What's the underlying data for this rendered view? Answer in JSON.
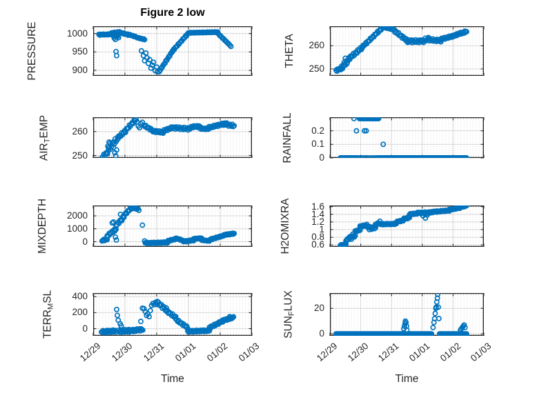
{
  "figure": {
    "title": "Figure 2 low",
    "xlabel": "Time",
    "xlim_days": [
      0,
      5
    ],
    "xticks_days": [
      0,
      1,
      2,
      3,
      4,
      5
    ],
    "xticklabels": [
      "12/29",
      "12/30",
      "12/31",
      "01/01",
      "01/02",
      "01/03"
    ]
  },
  "colors": {
    "marker": "#0072BD",
    "axis": "#262626",
    "grid": "#d7d7d7",
    "minor_dot": "#a0a0a0",
    "title": "#000000"
  },
  "chart_data": [
    {
      "type": "scatter",
      "name": "pressure",
      "ylabel_parts": [
        {
          "t": "PRESSURE"
        }
      ],
      "ylim": [
        885,
        1020
      ],
      "yticks": [
        {
          "v": 1000,
          "label": "1000"
        },
        {
          "v": 950,
          "label": "950"
        },
        {
          "v": 900,
          "label": "900"
        }
      ],
      "bands": [
        [
          0.18,
          0.62,
          16,
          997,
          998,
          1.2
        ],
        [
          0.55,
          0.82,
          10,
          1001,
          1004,
          1.2
        ],
        [
          0.62,
          0.8,
          7,
          995,
          990,
          1.5
        ],
        [
          0.82,
          1.1,
          10,
          1003,
          997,
          1.5
        ],
        [
          1.1,
          1.38,
          10,
          998,
          990,
          1.0
        ],
        [
          1.38,
          1.62,
          9,
          989,
          984,
          0.8
        ],
        [
          2.08,
          2.5,
          15,
          897,
          952,
          1.5
        ],
        [
          2.5,
          3.0,
          18,
          953,
          1001,
          1.5
        ],
        [
          3.0,
          3.92,
          32,
          1002,
          1004,
          0.8
        ],
        [
          3.92,
          4.3,
          13,
          1001,
          969,
          0.8
        ]
      ],
      "points": [
        [
          0.72,
          951
        ],
        [
          0.74,
          940
        ],
        [
          0.66,
          988
        ],
        [
          0.7,
          984
        ],
        [
          1.52,
          953
        ],
        [
          1.58,
          940
        ],
        [
          1.62,
          926
        ],
        [
          1.66,
          947
        ],
        [
          1.7,
          934
        ],
        [
          1.74,
          919
        ],
        [
          1.78,
          929
        ],
        [
          1.82,
          906
        ],
        [
          1.86,
          914
        ],
        [
          1.9,
          922
        ],
        [
          1.95,
          899
        ],
        [
          2.0,
          909
        ],
        [
          2.02,
          896
        ],
        [
          4.34,
          965
        ]
      ]
    },
    {
      "type": "scatter",
      "name": "theta",
      "ylabel_parts": [
        {
          "t": "THETA"
        }
      ],
      "ylim": [
        247,
        268.5
      ],
      "yticks": [
        {
          "v": 260,
          "label": "260"
        },
        {
          "v": 250,
          "label": "250"
        }
      ],
      "bands": [
        [
          0.2,
          0.38,
          8,
          249.3,
          250.2,
          0.4
        ],
        [
          0.38,
          0.62,
          9,
          250.5,
          254,
          0.8
        ],
        [
          0.62,
          1.05,
          16,
          254.5,
          259.3,
          0.6
        ],
        [
          1.05,
          1.72,
          24,
          259.5,
          268,
          0.4
        ],
        [
          1.72,
          2.05,
          12,
          268.2,
          267.3,
          0.3
        ],
        [
          2.05,
          2.5,
          16,
          267,
          262.3,
          0.5
        ],
        [
          2.5,
          3.1,
          22,
          262,
          262,
          0.6
        ],
        [
          3.1,
          3.6,
          18,
          262.8,
          262.2,
          0.5
        ],
        [
          3.6,
          4.1,
          18,
          262.8,
          264.6,
          0.4
        ],
        [
          4.1,
          4.44,
          13,
          264.8,
          266.2,
          0.4
        ]
      ],
      "points": [
        [
          0.46,
          252.8
        ],
        [
          0.5,
          254.6
        ],
        [
          0.55,
          252.2
        ],
        [
          3.2,
          263.6
        ]
      ]
    },
    {
      "type": "scatter",
      "name": "air-temp",
      "ylabel_parts": [
        {
          "t": "AIR"
        },
        {
          "t": "T",
          "sub": true
        },
        {
          "t": "EMP"
        }
      ],
      "ylim": [
        249,
        266
      ],
      "yticks": [
        {
          "v": 260,
          "label": "260"
        },
        {
          "v": 250,
          "label": "250"
        }
      ],
      "bands": [
        [
          0.28,
          0.48,
          8,
          249.4,
          251.5,
          0.6
        ],
        [
          0.48,
          0.78,
          11,
          253.5,
          257,
          1.0
        ],
        [
          0.78,
          1.02,
          9,
          257.5,
          260.3,
          0.6
        ],
        [
          1.02,
          1.35,
          12,
          260.5,
          265.2,
          0.5
        ],
        [
          1.6,
          1.88,
          10,
          262.6,
          260.4,
          0.4
        ],
        [
          1.88,
          2.2,
          12,
          260.2,
          259.7,
          0.4
        ],
        [
          2.2,
          2.52,
          12,
          260.2,
          261.8,
          0.4
        ],
        [
          2.52,
          3.05,
          18,
          261.6,
          261.1,
          0.5
        ],
        [
          3.05,
          3.38,
          12,
          261.9,
          262.2,
          0.4
        ],
        [
          3.38,
          3.62,
          9,
          261.3,
          261.1,
          0.3
        ],
        [
          3.62,
          4.08,
          16,
          261.6,
          263.1,
          0.4
        ],
        [
          4.08,
          4.44,
          13,
          263.2,
          262.4,
          0.5
        ]
      ],
      "points": [
        [
          0.42,
          251.2
        ],
        [
          0.46,
          253.9
        ],
        [
          0.5,
          255.6
        ],
        [
          0.54,
          252.6
        ],
        [
          0.64,
          253.4
        ],
        [
          0.68,
          251.2
        ],
        [
          0.71,
          249.9
        ],
        [
          0.74,
          252.3
        ],
        [
          1.38,
          264.1
        ],
        [
          1.42,
          262.3
        ],
        [
          1.46,
          261.6
        ],
        [
          1.5,
          263.3
        ],
        [
          1.55,
          263.9
        ],
        [
          4.2,
          263.6
        ]
      ]
    },
    {
      "type": "scatter",
      "name": "rainfall",
      "ylabel_parts": [
        {
          "t": "RAINFALL"
        }
      ],
      "ylim": [
        0,
        0.3
      ],
      "yticks": [
        {
          "v": 0.2,
          "label": "0.2"
        },
        {
          "v": 0.1,
          "label": "0.1"
        },
        {
          "v": 0,
          "label": "0"
        }
      ],
      "bands": [
        [
          0.34,
          0.8,
          22,
          0,
          0,
          0
        ],
        [
          0.96,
          1.58,
          20,
          0.29,
          0.29,
          0
        ],
        [
          1.56,
          4.44,
          120,
          0,
          0,
          0
        ]
      ],
      "points": [
        [
          0.78,
          0.29
        ],
        [
          0.86,
          0.2
        ],
        [
          1.12,
          0.2
        ],
        [
          1.18,
          0.2
        ],
        [
          1.73,
          0.1
        ],
        [
          0.84,
          0
        ],
        [
          0.9,
          0
        ],
        [
          0.96,
          0
        ],
        [
          1.02,
          0
        ],
        [
          1.08,
          0
        ],
        [
          1.14,
          0
        ],
        [
          1.2,
          0
        ],
        [
          1.28,
          0
        ],
        [
          1.36,
          0
        ],
        [
          1.44,
          0
        ],
        [
          1.5,
          0
        ]
      ]
    },
    {
      "type": "scatter",
      "name": "mixdepth",
      "ylabel_parts": [
        {
          "t": "MIXDEPTH"
        }
      ],
      "ylim": [
        -400,
        2800
      ],
      "yticks": [
        {
          "v": 2000,
          "label": "2000"
        },
        {
          "v": 1000,
          "label": "1000"
        },
        {
          "v": 0,
          "label": "0"
        }
      ],
      "bands": [
        [
          0.28,
          0.44,
          7,
          90,
          200,
          60
        ],
        [
          0.44,
          0.72,
          10,
          430,
          1000,
          80
        ],
        [
          0.72,
          0.97,
          9,
          1250,
          1950,
          90
        ],
        [
          0.97,
          1.2,
          9,
          2050,
          2600,
          70
        ],
        [
          1.2,
          1.44,
          9,
          2700,
          2480,
          60
        ],
        [
          1.64,
          2.36,
          30,
          -110,
          -60,
          40
        ],
        [
          2.36,
          2.62,
          10,
          60,
          230,
          40
        ],
        [
          2.62,
          2.82,
          8,
          240,
          110,
          30
        ],
        [
          2.82,
          3.16,
          13,
          10,
          110,
          40
        ],
        [
          3.16,
          3.42,
          10,
          210,
          280,
          30
        ],
        [
          3.42,
          3.66,
          9,
          120,
          60,
          30
        ],
        [
          3.66,
          4.12,
          16,
          150,
          480,
          40
        ],
        [
          4.12,
          4.44,
          14,
          520,
          630,
          40
        ]
      ],
      "points": [
        [
          0.55,
          700
        ],
        [
          0.6,
          1450
        ],
        [
          0.64,
          1520
        ],
        [
          0.68,
          820
        ],
        [
          0.7,
          360
        ],
        [
          0.73,
          130
        ],
        [
          0.86,
          2120
        ],
        [
          0.9,
          1620
        ],
        [
          1.25,
          2760
        ],
        [
          1.3,
          2740
        ],
        [
          1.55,
          1280
        ],
        [
          1.62,
          60
        ]
      ]
    },
    {
      "type": "scatter",
      "name": "h2omixra",
      "ylabel_parts": [
        {
          "t": "H2OMIXRA"
        }
      ],
      "ylim": [
        0.55,
        1.63
      ],
      "yticks": [
        {
          "v": 1.6,
          "label": "1.6"
        },
        {
          "v": 1.4,
          "label": "1.4"
        },
        {
          "v": 1.2,
          "label": "1.2"
        },
        {
          "v": 1,
          "label": "1"
        },
        {
          "v": 0.8,
          "label": "0.8"
        },
        {
          "v": 0.6,
          "label": "0.6"
        }
      ],
      "bands": [
        [
          0.34,
          0.52,
          8,
          0.6,
          0.61,
          0.01
        ],
        [
          0.52,
          0.64,
          6,
          0.72,
          0.78,
          0.02
        ],
        [
          0.64,
          0.82,
          8,
          0.8,
          0.83,
          0.02
        ],
        [
          0.82,
          0.98,
          7,
          0.95,
          1.0,
          0.02
        ],
        [
          0.98,
          1.2,
          9,
          1.08,
          1.12,
          0.015
        ],
        [
          1.2,
          1.48,
          11,
          1.07,
          1.04,
          0.02
        ],
        [
          1.48,
          1.62,
          6,
          1.12,
          1.2,
          0.02
        ],
        [
          1.62,
          2.16,
          20,
          1.14,
          1.15,
          0.015
        ],
        [
          2.16,
          2.38,
          9,
          1.2,
          1.24,
          0.015
        ],
        [
          2.38,
          2.58,
          8,
          1.28,
          1.31,
          0.015
        ],
        [
          2.58,
          2.82,
          9,
          1.4,
          1.42,
          0.015
        ],
        [
          2.82,
          3.32,
          18,
          1.43,
          1.45,
          0.02
        ],
        [
          3.32,
          3.88,
          20,
          1.46,
          1.5,
          0.015
        ],
        [
          3.88,
          4.22,
          13,
          1.52,
          1.57,
          0.015
        ],
        [
          4.22,
          4.44,
          9,
          1.58,
          1.62,
          0.01
        ]
      ],
      "points": [
        [
          0.7,
          0.75
        ],
        [
          0.74,
          0.88
        ],
        [
          1.28,
          1.0
        ],
        [
          1.36,
          1.01
        ],
        [
          3.02,
          1.36
        ],
        [
          3.1,
          1.3
        ],
        [
          3.16,
          1.38
        ]
      ]
    },
    {
      "type": "scatter",
      "name": "terr-msl",
      "ylabel_parts": [
        {
          "t": "TERR"
        },
        {
          "t": "M",
          "sub": true
        },
        {
          "t": "SL"
        }
      ],
      "ylim": [
        -90,
        445
      ],
      "yticks": [
        {
          "v": 400,
          "label": "400"
        },
        {
          "v": 200,
          "label": "200"
        },
        {
          "v": 0,
          "label": "0"
        }
      ],
      "bands": [
        [
          0.26,
          0.72,
          20,
          -40,
          -30,
          14
        ],
        [
          0.8,
          1.12,
          14,
          -35,
          -25,
          16
        ],
        [
          1.12,
          1.56,
          18,
          -30,
          -10,
          14
        ],
        [
          2.02,
          2.3,
          10,
          320,
          240,
          20
        ],
        [
          2.3,
          2.6,
          10,
          225,
          140,
          15
        ],
        [
          2.6,
          2.98,
          13,
          115,
          10,
          12
        ],
        [
          2.98,
          3.66,
          26,
          -35,
          -25,
          10
        ],
        [
          3.66,
          4.08,
          15,
          10,
          95,
          12
        ],
        [
          4.08,
          4.42,
          13,
          100,
          140,
          10
        ]
      ],
      "points": [
        [
          0.74,
          240
        ],
        [
          0.76,
          165
        ],
        [
          0.79,
          105
        ],
        [
          0.85,
          60
        ],
        [
          0.88,
          35
        ],
        [
          1.5,
          90
        ],
        [
          1.55,
          255
        ],
        [
          1.6,
          250
        ],
        [
          1.64,
          215
        ],
        [
          1.68,
          165
        ],
        [
          1.72,
          185
        ],
        [
          1.76,
          150
        ],
        [
          1.8,
          225
        ],
        [
          1.84,
          290
        ],
        [
          1.88,
          315
        ],
        [
          1.93,
          300
        ],
        [
          1.97,
          330
        ],
        [
          2.02,
          340
        ],
        [
          4.3,
          150
        ],
        [
          4.35,
          130
        ]
      ]
    },
    {
      "type": "scatter",
      "name": "sun-flux",
      "ylabel_parts": [
        {
          "t": "SUN"
        },
        {
          "t": "F",
          "sub": true
        },
        {
          "t": "LUX"
        }
      ],
      "ylim": [
        -1.5,
        32
      ],
      "yticks": [
        {
          "v": 20,
          "label": "20"
        },
        {
          "v": 0,
          "label": "0"
        }
      ],
      "bands": [
        [
          0.2,
          2.38,
          80,
          0,
          0,
          0
        ],
        [
          2.52,
          3.3,
          30,
          0,
          0,
          0
        ],
        [
          3.56,
          4.44,
          34,
          0,
          0,
          0
        ]
      ],
      "points": [
        [
          2.4,
          4
        ],
        [
          2.42,
          6
        ],
        [
          2.44,
          8
        ],
        [
          2.45,
          10
        ],
        [
          2.47,
          9
        ],
        [
          2.49,
          6
        ],
        [
          2.5,
          3
        ],
        [
          3.35,
          5
        ],
        [
          3.38,
          9
        ],
        [
          3.4,
          12
        ],
        [
          3.42,
          16
        ],
        [
          3.44,
          20
        ],
        [
          3.45,
          21
        ],
        [
          3.47,
          25
        ],
        [
          3.49,
          28
        ],
        [
          3.5,
          31
        ],
        [
          3.52,
          21
        ],
        [
          3.54,
          12
        ],
        [
          4.24,
          3
        ],
        [
          4.27,
          4
        ],
        [
          4.3,
          5
        ],
        [
          4.33,
          6
        ],
        [
          4.36,
          7
        ],
        [
          4.39,
          5
        ]
      ]
    }
  ]
}
